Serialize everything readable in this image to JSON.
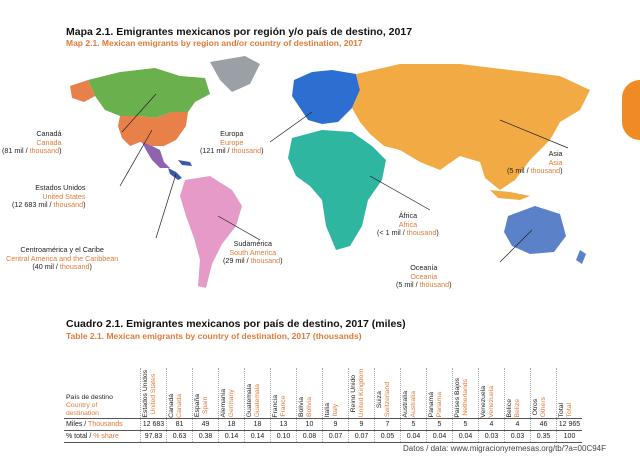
{
  "map": {
    "title_es": "Mapa 2.1. Emigrantes mexicanos por región y/o país de destino, 2017",
    "title_en": "Map 2.1. Mexican emigrants by region and/or country of destination, 2017",
    "labels": {
      "canada": {
        "es": "Canadá",
        "en": "Canada",
        "val": "(81 mil / ",
        "unit": "thousand",
        ")": ")"
      },
      "usa": {
        "es": "Estados Unidos",
        "en": "United States",
        "val": "(12 683 mil / ",
        "unit": "thousand"
      },
      "central": {
        "es": "Centroamérica y el Caribe",
        "en": "Central America and the Caribbean",
        "val": "(40 mil / ",
        "unit": "thousand"
      },
      "sudamerica": {
        "es": "Sudamérica",
        "en": "South America",
        "val": "(29 mil / ",
        "unit": "thousand"
      },
      "europa": {
        "es": "Europa",
        "en": "Europe",
        "val": "(121 mil / ",
        "unit": "thousand"
      },
      "africa": {
        "es": "África",
        "en": "Africa",
        "val": "(< 1 mil / ",
        "unit": "thousand"
      },
      "asia": {
        "es": "Asia",
        "en": "Asia",
        "val": "(5 mil / ",
        "unit": "thousand"
      },
      "oceania": {
        "es": "Oceanía",
        "en": "Oceania",
        "val": "(5 mil / ",
        "unit": "thousand"
      }
    },
    "colors": {
      "canada": "#6ab04c",
      "usa": "#e8804a",
      "mexico": "#8e63b0",
      "central": "#3a5aa8",
      "south_america": "#e59ac7",
      "europe": "#2d6ed1",
      "africa": "#2fb6a0",
      "asia": "#f2aa44",
      "oceania": "#5b82c9",
      "greenland": "#9aa0a6"
    }
  },
  "table": {
    "title_es": "Cuadro 2.1. Emigrantes mexicanos por país de destino, 2017 (miles)",
    "title_en": "Table 2.1. Mexican emigrants by country of destination, 2017 (thousands)",
    "rowhead": {
      "es1": "País de destino",
      "en1": "Country of",
      "en2": "destination"
    },
    "columns": [
      {
        "es": "Estados Unidos",
        "en": "United States"
      },
      {
        "es": "Canadá",
        "en": "Canada"
      },
      {
        "es": "España",
        "en": "Spain"
      },
      {
        "es": "Alemania",
        "en": "Germany"
      },
      {
        "es": "Guatemala",
        "en": "Guatemala"
      },
      {
        "es": "Francia",
        "en": "France"
      },
      {
        "es": "Bolivia",
        "en": "Bolivia"
      },
      {
        "es": "Italia",
        "en": "Italy"
      },
      {
        "es": "Reino Unido",
        "en": "United Kingdom"
      },
      {
        "es": "Suiza",
        "en": "Switzerland"
      },
      {
        "es": "Australia",
        "en": "Australia"
      },
      {
        "es": "Panamá",
        "en": "Panama"
      },
      {
        "es": "Países Bajos",
        "en": "Netherlands"
      },
      {
        "es": "Venezuela",
        "en": "Venezuela"
      },
      {
        "es": "Belice",
        "en": "Belize"
      },
      {
        "es": "Otros",
        "en": "Others"
      },
      {
        "es": "Total",
        "en": "Total"
      }
    ],
    "row1": {
      "es": "Miles / ",
      "en": "Thousands",
      "values": [
        "12 683",
        "81",
        "49",
        "18",
        "18",
        "13",
        "10",
        "9",
        "9",
        "7",
        "5",
        "5",
        "5",
        "4",
        "4",
        "46",
        "12 965"
      ]
    },
    "row2": {
      "es": "% total / ",
      "en": "% share",
      "values": [
        "97.83",
        "0.63",
        "0.38",
        "0.14",
        "0.14",
        "0.10",
        "0.08",
        "0.07",
        "0.07",
        "0.05",
        "0.04",
        "0.04",
        "0.04",
        "0.03",
        "0.03",
        "0.35",
        "100"
      ]
    }
  },
  "footer": "Datos / data: www.migracionyremesas.org/tb/?a=00C94F"
}
